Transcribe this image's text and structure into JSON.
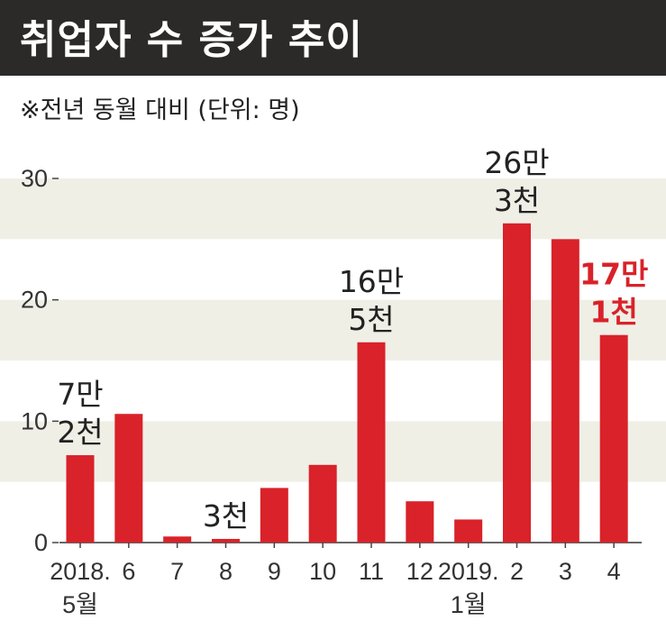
{
  "chart_data": {
    "type": "bar",
    "title": "취업자 수 증가 추이",
    "subtitle": "※전년 동월 대비 (단위: 명)",
    "categories": [
      "2018.|5월",
      "6",
      "7",
      "8",
      "9",
      "10",
      "11",
      "12",
      "2019.|1월",
      "2",
      "3",
      "4"
    ],
    "values": [
      7.2,
      10.6,
      0.5,
      0.3,
      4.5,
      6.4,
      16.5,
      3.4,
      1.9,
      26.3,
      25.0,
      17.1
    ],
    "ylim": [
      0,
      30
    ],
    "yticks": [
      0,
      10,
      20,
      30
    ],
    "grid": "alternating horizontal bands",
    "bar_color": "#d92229",
    "highlight_color": "#d92229",
    "annotations": [
      {
        "index": 0,
        "lines": [
          "7만",
          "2천"
        ],
        "highlight": false
      },
      {
        "index": 3,
        "lines": [
          "3천"
        ],
        "highlight": false
      },
      {
        "index": 6,
        "lines": [
          "16만",
          "5천"
        ],
        "highlight": false
      },
      {
        "index": 9,
        "lines": [
          "26만",
          "3천"
        ],
        "highlight": false
      },
      {
        "index": 11,
        "lines": [
          "17만",
          "1천"
        ],
        "highlight": true
      }
    ]
  }
}
